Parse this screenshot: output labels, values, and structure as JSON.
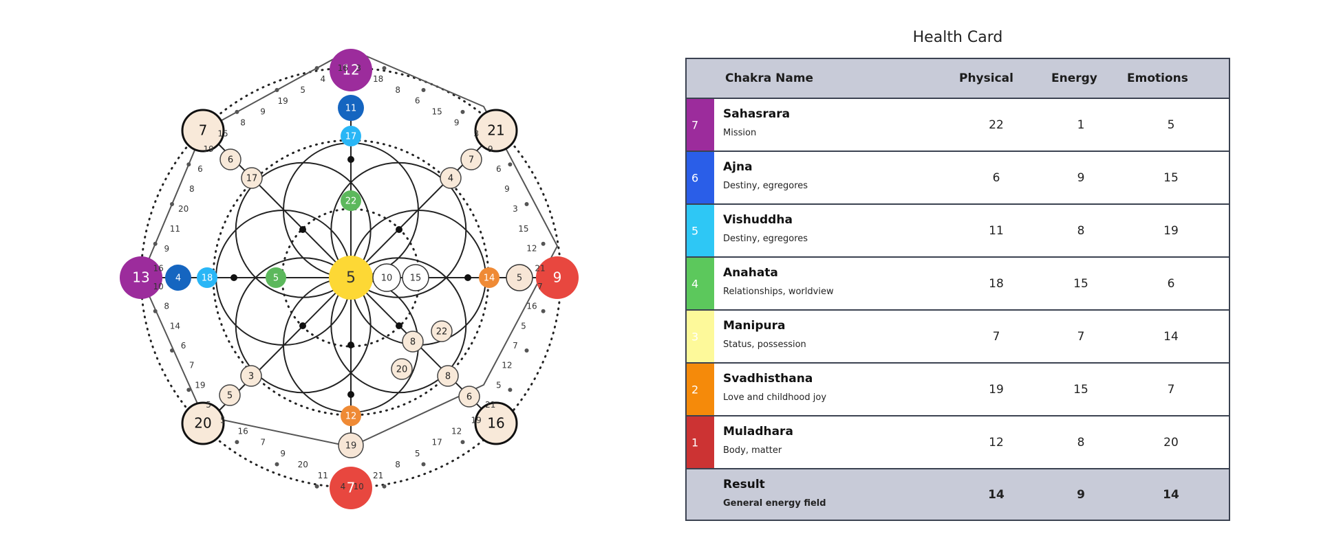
{
  "diagram": {
    "center": {
      "value": "5",
      "color": "#fdd835"
    },
    "corner_nodes": [
      "7",
      "21",
      "16",
      "20"
    ],
    "large_nodes": [
      {
        "id": "top",
        "value": "12",
        "color": "#9c2c9c"
      },
      {
        "id": "right",
        "value": "9",
        "color": "#e8473f"
      },
      {
        "id": "bottom",
        "value": "7",
        "color": "#e8473f"
      },
      {
        "id": "left",
        "value": "13",
        "color": "#9c2c9c"
      }
    ],
    "vertical_chain": [
      {
        "value": "11",
        "color": "#1565c0"
      },
      {
        "value": "17",
        "color": "#29b6f6"
      },
      {
        "value": "22",
        "color": "#5cb85c"
      },
      {
        "value": "12",
        "color": "#ef8a35"
      },
      {
        "value": "19",
        "color": "#f7e6d6"
      }
    ],
    "horizontal_chain": [
      {
        "value": "4",
        "color": "#1565c0"
      },
      {
        "value": "18",
        "color": "#29b6f6"
      },
      {
        "value": "5",
        "color": "#5cb85c"
      },
      {
        "value": "10",
        "color": "#ffffff"
      },
      {
        "value": "15",
        "color": "#ffffff"
      },
      {
        "value": "14",
        "color": "#ef8a35"
      },
      {
        "value": "5",
        "color": "#f7e6d6"
      }
    ],
    "diagonal_nodes": {
      "nw": [
        "6",
        "17"
      ],
      "ne": [
        "7",
        "4"
      ],
      "se": [
        "6",
        "8"
      ],
      "sw": [
        "5",
        "3"
      ],
      "money_line": [
        "8",
        "22",
        "20"
      ]
    },
    "perimeter_labels": {
      "top_left": [
        "15",
        "8",
        "9",
        "19",
        "5",
        "4",
        "16"
      ],
      "top_right": [
        "3",
        "18",
        "8",
        "6",
        "15",
        "9",
        "3"
      ],
      "right_top": [
        "9",
        "6",
        "9",
        "3",
        "15",
        "12",
        "21"
      ],
      "right_bottom": [
        "7",
        "16",
        "5",
        "7",
        "12",
        "5",
        "21"
      ],
      "bottom_right": [
        "19",
        "12",
        "17",
        "5",
        "8",
        "21",
        "10"
      ],
      "bottom_left": [
        "4",
        "11",
        "20",
        "9",
        "7",
        "16",
        "5"
      ],
      "left_bottom": [
        "5",
        "19",
        "7",
        "6",
        "14",
        "8",
        "10"
      ],
      "left_top": [
        "16",
        "9",
        "11",
        "20",
        "8",
        "6",
        "19"
      ]
    }
  },
  "health_card": {
    "title": "Health Card",
    "headers": {
      "name": "Chakra Name",
      "physical": "Physical",
      "energy": "Energy",
      "emotions": "Emotions"
    },
    "rows": [
      {
        "num": "7",
        "color": "#9c2c9c",
        "name": "Sahasrara",
        "desc": "Mission",
        "physical": "22",
        "energy": "1",
        "emotions": "5"
      },
      {
        "num": "6",
        "color": "#2a5ee8",
        "name": "Ajna",
        "desc": "Destiny, egregores",
        "physical": "6",
        "energy": "9",
        "emotions": "15"
      },
      {
        "num": "5",
        "color": "#2ec7f5",
        "name": "Vishuddha",
        "desc": "Destiny, egregores",
        "physical": "11",
        "energy": "8",
        "emotions": "19"
      },
      {
        "num": "4",
        "color": "#5cc85c",
        "name": "Anahata",
        "desc": "Relationships, worldview",
        "physical": "18",
        "energy": "15",
        "emotions": "6"
      },
      {
        "num": "3",
        "color": "#fdf99a",
        "name": "Manipura",
        "desc": "Status, possession",
        "physical": "7",
        "energy": "7",
        "emotions": "14"
      },
      {
        "num": "2",
        "color": "#f58a0a",
        "name": "Svadhisthana",
        "desc": "Love and childhood joy",
        "physical": "19",
        "energy": "15",
        "emotions": "7"
      },
      {
        "num": "1",
        "color": "#cc3333",
        "name": "Muladhara",
        "desc": "Body, matter",
        "physical": "12",
        "energy": "8",
        "emotions": "20"
      }
    ],
    "result": {
      "name": "Result",
      "desc": "General energy field",
      "physical": "14",
      "energy": "9",
      "emotions": "14"
    }
  }
}
